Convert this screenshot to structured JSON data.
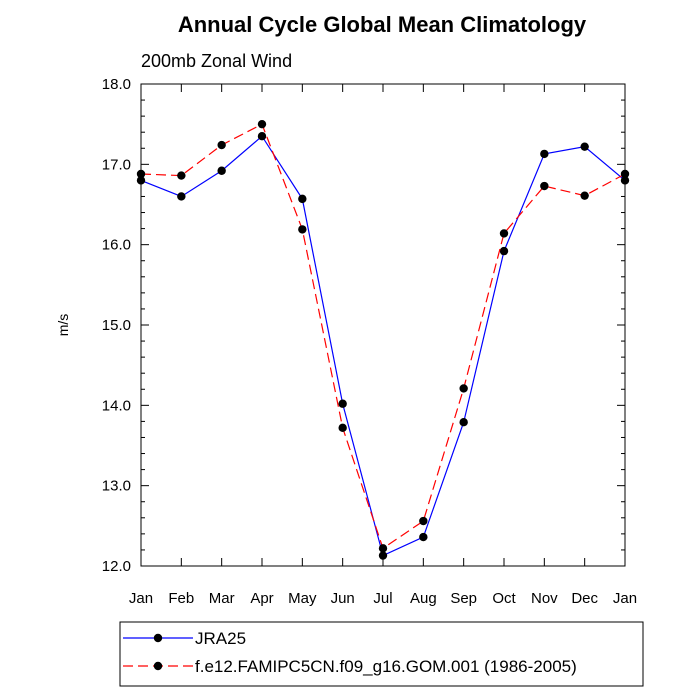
{
  "chart_data": {
    "type": "line",
    "title": "Annual Cycle Global Mean Climatology",
    "subtitle": "200mb Zonal Wind",
    "xlabel": "",
    "ylabel": "m/s",
    "categories": [
      "Jan",
      "Feb",
      "Mar",
      "Apr",
      "May",
      "Jun",
      "Jul",
      "Aug",
      "Sep",
      "Oct",
      "Nov",
      "Dec",
      "Jan"
    ],
    "ylim": [
      12.0,
      18.0
    ],
    "yticks": [
      "12.0",
      "13.0",
      "14.0",
      "15.0",
      "16.0",
      "17.0",
      "18.0"
    ],
    "grid": false,
    "legend_position": "bottom",
    "series": [
      {
        "name": "JRA25",
        "color": "#0000ff",
        "line_style": "solid",
        "marker": "filled-circle",
        "values": [
          16.8,
          16.6,
          16.92,
          17.35,
          16.57,
          14.02,
          12.13,
          12.36,
          13.79,
          15.92,
          17.13,
          17.22,
          16.8
        ]
      },
      {
        "name": "f.e12.FAMIPC5CN.f09_g16.GOM.001 (1986-2005)",
        "color": "#ff0000",
        "line_style": "dashed",
        "marker": "filled-circle",
        "values": [
          16.88,
          16.86,
          17.24,
          17.5,
          16.19,
          13.72,
          12.22,
          12.56,
          14.21,
          16.14,
          16.73,
          16.61,
          16.88
        ]
      }
    ]
  }
}
